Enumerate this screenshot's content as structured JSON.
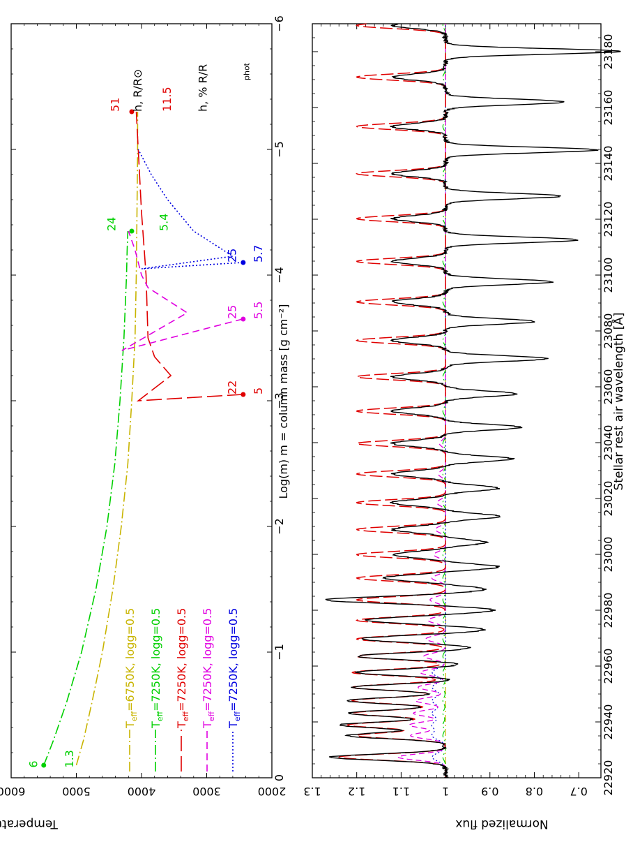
{
  "chart_data": [
    {
      "type": "line",
      "xlabel": "Log(m)    m = column mass    [g cm⁻²]",
      "ylabel": "Temperature, K",
      "xlim": [
        0,
        -6
      ],
      "ylim": [
        2000,
        6000
      ],
      "xticks": [
        "0",
        "−1",
        "−2",
        "−3",
        "−4",
        "−5",
        "−6"
      ],
      "yticks": [
        "2000",
        "3000",
        "4000",
        "5000",
        "6000"
      ],
      "grid": false,
      "legend_placement": "lower-left",
      "series": [
        {
          "name": "T_eff=6750K, logg=0.5",
          "teff": "6750K",
          "logg": "logg=0.5",
          "color": "#c8b400",
          "dash": "dashdot",
          "x": [
            -0.1,
            -0.3,
            -0.6,
            -1.0,
            -1.5,
            -2.0,
            -2.5,
            -3.0,
            -3.5,
            -4.0,
            -4.5,
            -5.0,
            -5.3
          ],
          "y": [
            5000,
            4890,
            4760,
            4600,
            4440,
            4310,
            4210,
            4150,
            4100,
            4080,
            4070,
            4060,
            4060
          ]
        },
        {
          "name": "T_eff=7250K, logg=0.5",
          "teff": "7250K",
          "logg": "logg=0.5",
          "color": "#00d000",
          "dash": "dashdot",
          "x": [
            -0.1,
            -0.3,
            -0.6,
            -1.0,
            -1.5,
            -2.0,
            -2.5,
            -3.0,
            -3.5,
            -4.0,
            -4.2,
            -4.35
          ],
          "y": [
            5500,
            5350,
            5150,
            4920,
            4700,
            4530,
            4410,
            4330,
            4270,
            4230,
            4220,
            4210
          ]
        },
        {
          "name": "T_eff=7250K, logg=0.5",
          "teff": "7250K",
          "logg": "logg=0.5",
          "color": "#e00000",
          "dash": "longdash",
          "x": [
            -3.05,
            -3.0,
            -3.2,
            -3.35,
            -3.5,
            -4.0,
            -4.5,
            -5.0,
            -5.3
          ],
          "y": [
            2450,
            4050,
            3550,
            3800,
            3900,
            3930,
            4000,
            4050,
            4080
          ]
        },
        {
          "name": "T_eff=7250K, logg=0.5",
          "teff": "7250K",
          "logg": "logg=0.5",
          "color": "#e000e0",
          "dash": "dash",
          "x": [
            -3.65,
            -3.4,
            -3.7,
            -3.9,
            -4.0,
            -4.2,
            -4.35
          ],
          "y": [
            2450,
            4300,
            3300,
            3900,
            4000,
            4100,
            4200
          ]
        },
        {
          "name": "T_eff=7250K, logg=0.5",
          "teff": "7250K",
          "logg": "logg=0.5",
          "color": "#0000e0",
          "dash": "dot",
          "x": [
            -4.1,
            -4.05,
            -4.15,
            -4.35,
            -4.6,
            -4.8,
            -5.0
          ],
          "y": [
            2450,
            4000,
            2600,
            3200,
            3600,
            3850,
            4050
          ]
        }
      ],
      "markers": [
        {
          "x": -0.1,
          "y": 5500,
          "color": "#00d000"
        },
        {
          "x": -4.35,
          "y": 4150,
          "color": "#00d000"
        },
        {
          "x": -3.05,
          "y": 2440,
          "color": "#e00000"
        },
        {
          "x": -5.3,
          "y": 4150,
          "color": "#e00000"
        },
        {
          "x": -3.65,
          "y": 2440,
          "color": "#e000e0"
        },
        {
          "x": -4.1,
          "y": 2440,
          "color": "#0000e0"
        }
      ],
      "annotations": [
        {
          "text": "6",
          "x": -0.08,
          "y": 5600,
          "color": "#00d000",
          "rot": -90
        },
        {
          "text": "1.3",
          "x": -0.08,
          "y": 5050,
          "color": "#00d000",
          "rot": -90
        },
        {
          "text": "24",
          "x": -4.35,
          "y": 4400,
          "color": "#00d000",
          "rot": -90
        },
        {
          "text": "5.4",
          "x": -4.35,
          "y": 3600,
          "color": "#00d000",
          "rot": -90
        },
        {
          "text": "22",
          "x": -3.05,
          "y": 2550,
          "color": "#e00000",
          "rot": -90
        },
        {
          "text": "5",
          "x": -3.05,
          "y": 2150,
          "color": "#e00000",
          "rot": -90
        },
        {
          "text": "25",
          "x": -3.65,
          "y": 2550,
          "color": "#e000e0",
          "rot": -90
        },
        {
          "text": "5.5",
          "x": -3.65,
          "y": 2150,
          "color": "#e000e0",
          "rot": -90
        },
        {
          "text": "25",
          "x": -4.1,
          "y": 2550,
          "color": "#0000e0",
          "rot": -90
        },
        {
          "text": "5.7",
          "x": -4.1,
          "y": 2150,
          "color": "#0000e0",
          "rot": -90
        },
        {
          "text": "51",
          "x": -5.3,
          "y": 4350,
          "color": "#e00000",
          "rot": -90
        },
        {
          "text": "h,  R/R⊙",
          "x": -5.3,
          "y": 4000,
          "color": "#000000",
          "rot": -90
        },
        {
          "text": "11.5",
          "x": -5.3,
          "y": 3550,
          "color": "#e00000",
          "rot": -90
        },
        {
          "text": "h,  % R/R",
          "x": -5.3,
          "y": 3000,
          "color": "#000000",
          "rot": -90
        },
        {
          "text": "phot",
          "x": -5.55,
          "y": 2350,
          "color": "#000000",
          "rot": -90
        }
      ]
    },
    {
      "type": "line",
      "xlabel": "Stellar rest air wavelength [Å]",
      "ylabel": "Normalized flux",
      "xlim": [
        22920,
        23190
      ],
      "ylim": [
        0.65,
        1.3
      ],
      "xticks": [
        "22920",
        "22940",
        "22960",
        "22980",
        "23000",
        "23020",
        "23040",
        "23060",
        "23080",
        "23100",
        "23120",
        "23140",
        "23160",
        "23180"
      ],
      "yticks": [
        "0.7",
        "0.8",
        "0.9",
        "1",
        "1.1",
        "1.2",
        "1.3"
      ],
      "grid": false,
      "lines_red": [
        22927.4,
        22935.1,
        22938.9,
        22943.1,
        22947.6,
        22952.4,
        22957.7,
        22963.5,
        22969.7,
        22976.4,
        22983.7,
        22991.5,
        22999.9,
        23008.9,
        23018.5,
        23028.8,
        23039.7,
        23051.3,
        23063.6,
        23076.6,
        23090.4,
        23104.9,
        23120.2,
        23136.3,
        23153.2,
        23170.9,
        23189.4
      ],
      "red_strength": [
        0.24,
        0.2,
        0.22,
        0.21,
        0.21,
        0.21,
        0.21,
        0.2,
        0.2,
        0.2,
        0.2,
        0.2,
        0.2,
        0.2,
        0.2,
        0.2,
        0.2,
        0.2,
        0.2,
        0.2,
        0.2,
        0.2,
        0.2,
        0.2,
        0.2,
        0.2,
        0.2
      ],
      "lines_black_em": [
        22927.4,
        22935.1,
        22938.9,
        22943.1,
        22947.6,
        22952.4,
        22957.7,
        22963.5,
        22969.7,
        22976.4,
        22983.7,
        22991.5,
        22999.9,
        23008.9,
        23018.5,
        23028.8,
        23039.7,
        23051.3,
        23063.6,
        23076.6,
        23090.4,
        23104.9,
        23120.2,
        23136.3,
        23153.2,
        23170.9,
        23189.4
      ],
      "black_strength": [
        0.26,
        0.22,
        0.24,
        0.22,
        0.22,
        0.21,
        0.2,
        0.2,
        0.19,
        0.18,
        0.27,
        0.14,
        0.12,
        0.12,
        0.12,
        0.12,
        0.12,
        0.12,
        0.12,
        0.12,
        0.12,
        0.12,
        0.12,
        0.12,
        0.12,
        0.12,
        0.12
      ],
      "lines_black_abs": [
        22955.0,
        22960.6,
        22966.5,
        22973.0,
        22980.0,
        22987.5,
        22995.5,
        23004.3,
        23013.6,
        23023.7,
        23034.2,
        23045.5,
        23057.5,
        23070.1,
        23083.4,
        23097.6,
        23112.6,
        23128.3,
        23144.8,
        23162.0,
        23180.1
      ],
      "black_abs_depth": [
        0.03,
        0.04,
        0.06,
        0.09,
        0.11,
        0.09,
        0.12,
        0.09,
        0.12,
        0.12,
        0.15,
        0.17,
        0.16,
        0.23,
        0.2,
        0.24,
        0.3,
        0.26,
        0.34,
        0.27,
        0.39
      ]
    }
  ]
}
